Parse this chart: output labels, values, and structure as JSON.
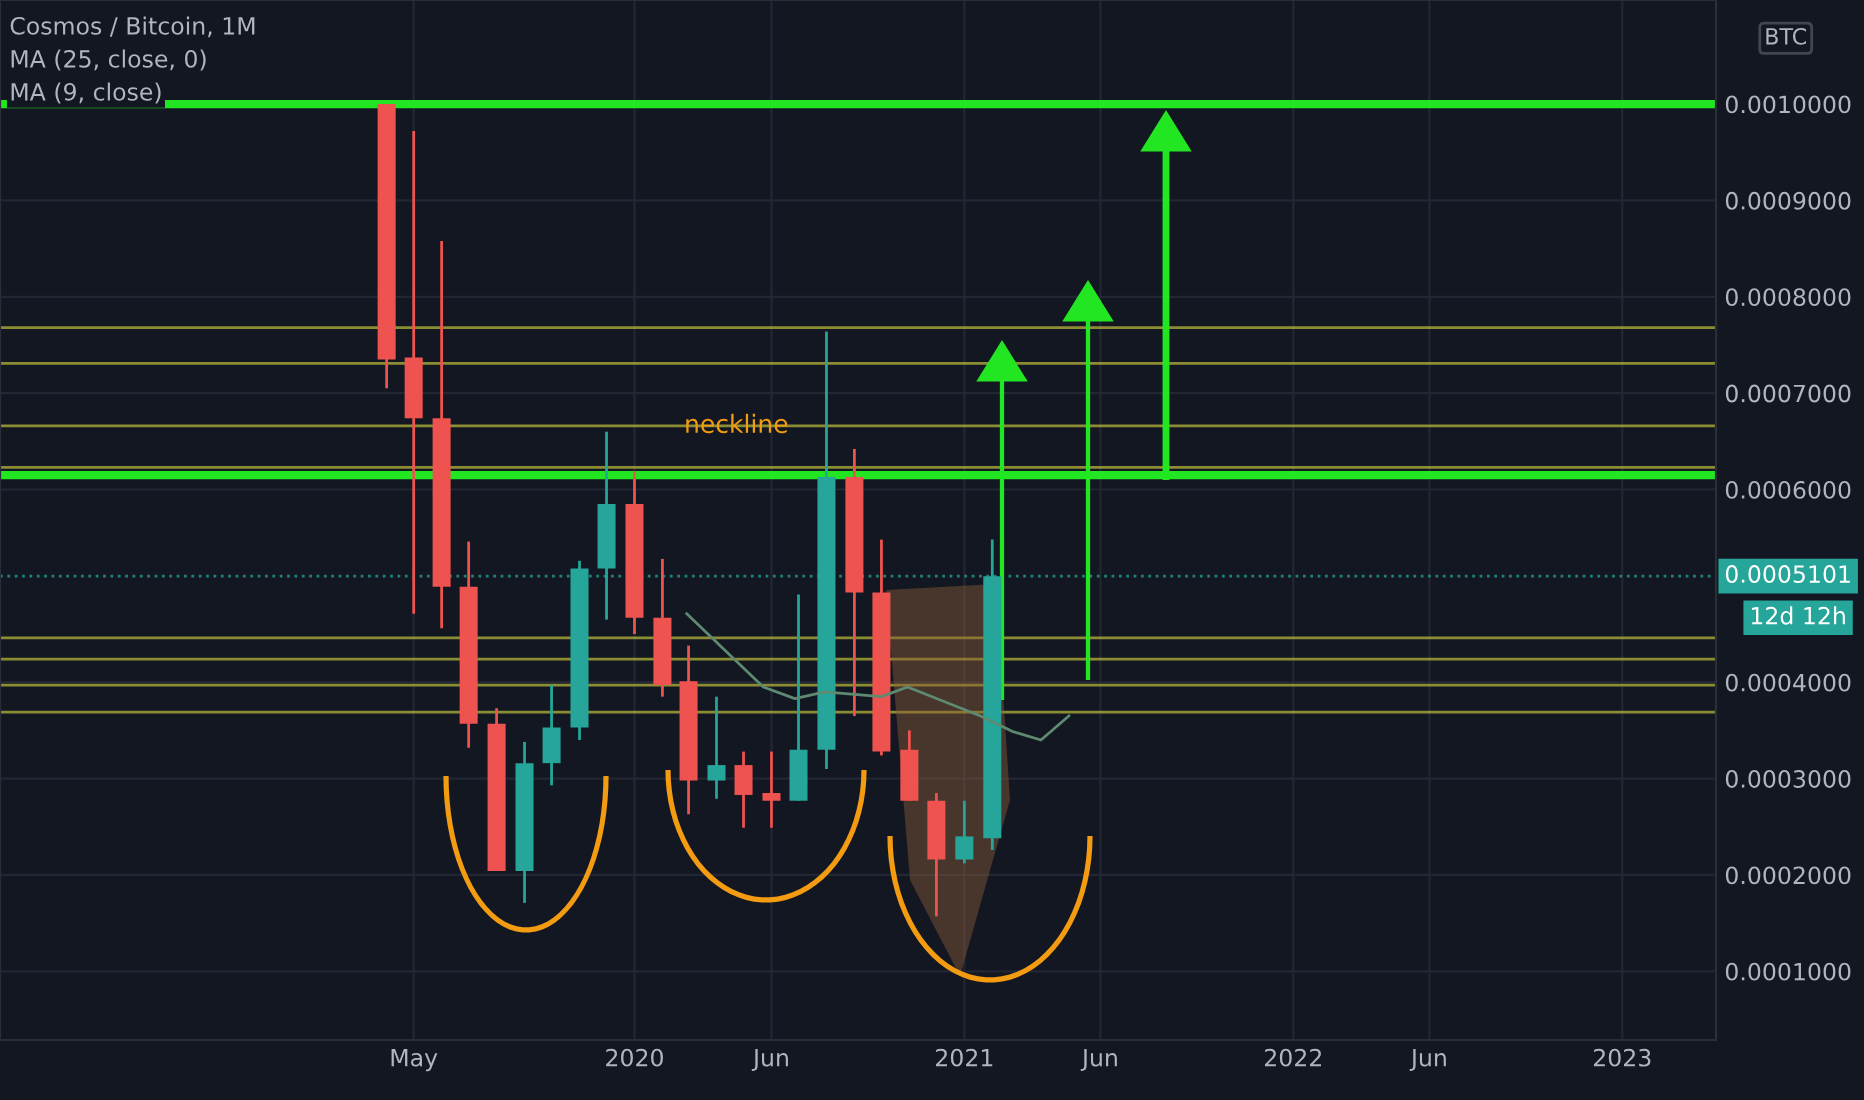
{
  "chart_data": {
    "type": "candlestick",
    "title": "Cosmos / Bitcoin, 1M",
    "x": [
      "2019-04",
      "2019-05",
      "2019-06",
      "2019-07",
      "2019-08",
      "2019-09",
      "2019-10",
      "2019-11",
      "2019-12",
      "2020-01",
      "2020-02",
      "2020-03",
      "2020-04",
      "2020-05",
      "2020-06",
      "2020-07",
      "2020-08",
      "2020-09",
      "2020-10",
      "2020-11",
      "2020-12",
      "2021-01",
      "2021-02"
    ],
    "ohlc": [
      [
        0.001,
        0.001,
        0.000705,
        0.000735
      ],
      [
        0.000737,
        0.000972,
        0.000471,
        0.000674
      ],
      [
        0.000674,
        0.000858,
        0.000456,
        0.000499
      ],
      [
        0.000499,
        0.000546,
        0.000332,
        0.000357
      ],
      [
        0.000357,
        0.000373,
        0.000204,
        0.000204
      ],
      [
        0.000204,
        0.000338,
        0.000171,
        0.000316
      ],
      [
        0.000316,
        0.000397,
        0.000293,
        0.000353
      ],
      [
        0.000353,
        0.000526,
        0.00034,
        0.000518
      ],
      [
        0.000518,
        0.00066,
        0.000465,
        0.000585
      ],
      [
        0.000585,
        0.000619,
        0.00045,
        0.000467
      ],
      [
        0.000467,
        0.000528,
        0.000385,
        0.000397
      ],
      [
        0.000401,
        0.000438,
        0.000263,
        0.000298
      ],
      [
        0.000298,
        0.000385,
        0.000279,
        0.000314
      ],
      [
        0.000314,
        0.000328,
        0.000249,
        0.000283
      ],
      [
        0.000285,
        0.000328,
        0.000249,
        0.000277
      ],
      [
        0.000277,
        0.000491,
        0.000277,
        0.00033
      ],
      [
        0.00033,
        0.000764,
        0.00031,
        0.000613
      ],
      [
        0.000613,
        0.000642,
        0.000365,
        0.000493
      ],
      [
        0.000493,
        0.000548,
        0.000324,
        0.000328
      ],
      [
        0.00033,
        0.00035,
        0.000277,
        0.000277
      ],
      [
        0.000277,
        0.000285,
        0.000157,
        0.000216
      ],
      [
        0.000216,
        0.000277,
        0.000212,
        0.00024
      ],
      [
        0.000238,
        0.000548,
        0.000226,
        0.0005101
      ]
    ],
    "series": [
      {
        "type": "line",
        "color": "#5d8a70",
        "x": [
          "2020-02-28",
          "2020-05-23",
          "2020-06-27",
          "2020-07-30",
          "2020-10-01",
          "2020-10-30",
          "2021-01-19",
          "2021-02-23",
          "2021-03-27",
          "2021-04-27"
        ],
        "values": [
          0.000471,
          0.000395,
          0.000383,
          0.00039,
          0.000385,
          0.000395,
          0.000365,
          0.000349,
          0.00034,
          0.000365
        ]
      }
    ],
    "colors": [
      "#ef5350",
      "#ef5350",
      "#ef5350",
      "#ef5350",
      "#ef5350",
      "#26a69a",
      "#26a69a",
      "#26a69a",
      "#26a69a",
      "#ef5350",
      "#ef5350",
      "#ef5350",
      "#26a69a",
      "#ef5350",
      "#ef5350",
      "#26a69a",
      "#26a69a",
      "#ef5350",
      "#ef5350",
      "#ef5350",
      "#ef5350",
      "#26a69a",
      "#26a69a"
    ],
    "xlim": [
      "2018-01-27",
      "2023-04-15"
    ],
    "xticks": [
      {
        "value": "2019-05-01",
        "label": "May"
      },
      {
        "value": "2020-01-01",
        "label": "2020"
      },
      {
        "value": "2020-06-01",
        "label": "Jun"
      },
      {
        "value": "2021-01-01",
        "label": "2021"
      },
      {
        "value": "2021-06-01",
        "label": "Jun"
      },
      {
        "value": "2022-01-01",
        "label": "2022"
      },
      {
        "value": "2022-06-01",
        "label": "Jun"
      },
      {
        "value": "2023-01-01",
        "label": "2023"
      }
    ],
    "ylim": [
      2.87e-05,
      0.001108
    ],
    "yticks": [
      {
        "value": 0.0001,
        "label": "0.0001000"
      },
      {
        "value": 0.0002,
        "label": "0.0002000"
      },
      {
        "value": 0.0003,
        "label": "0.0003000"
      },
      {
        "value": 0.0004,
        "label": "0.0004000"
      },
      {
        "value": 0.0006,
        "label": "0.0006000"
      },
      {
        "value": 0.0007,
        "label": "0.0007000"
      },
      {
        "value": 0.0008,
        "label": "0.0008000"
      },
      {
        "value": 0.0009,
        "label": "0.0009000"
      },
      {
        "value": 0.001,
        "label": "0.0010000"
      }
    ],
    "ref_lines": [
      {
        "axis": "y",
        "value": 0.001,
        "color": "#22e622"
      },
      {
        "axis": "y",
        "value": 0.000615,
        "color": "#22e622"
      },
      {
        "axis": "y",
        "value": 0.000768,
        "color": "#b5b53a"
      },
      {
        "axis": "y",
        "value": 0.000731,
        "color": "#b5b53a"
      },
      {
        "axis": "y",
        "value": 0.000666,
        "color": "#b5b53a"
      },
      {
        "axis": "y",
        "value": 0.000623,
        "color": "#b5b53a"
      },
      {
        "axis": "y",
        "value": 0.000446,
        "color": "#b5b53a"
      },
      {
        "axis": "y",
        "value": 0.000424,
        "color": "#b5b53a"
      },
      {
        "axis": "y",
        "value": 0.000397,
        "color": "#b5b53a"
      },
      {
        "axis": "y",
        "value": 0.000369,
        "color": "#b5b53a"
      },
      {
        "axis": "y",
        "value": 0.0005101,
        "label": "0.0005101",
        "color": "#26a69a",
        "line_style": "dotted"
      }
    ],
    "annotations": [
      "MA (25, close, 0)",
      "MA (9, close)",
      {
        "text": "neckline",
        "x": "2020-06-20",
        "y": 0.000666
      },
      "12d 12h",
      "BTC"
    ],
    "grid": true
  }
}
